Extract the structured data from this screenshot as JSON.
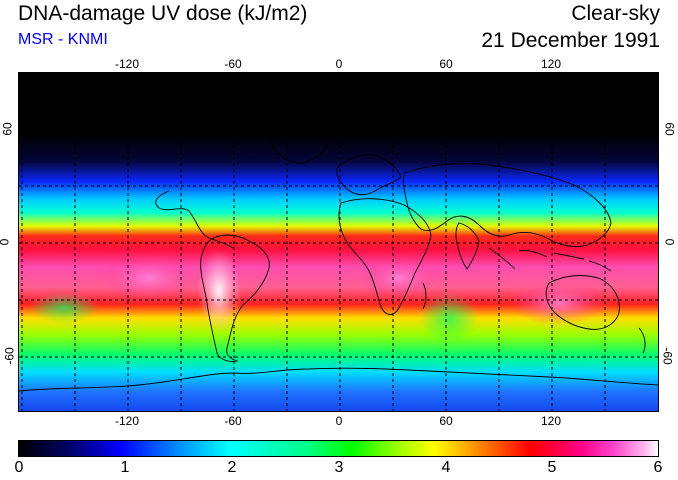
{
  "header": {
    "title": "DNA-damage UV dose (kJ/m2)",
    "subtitle": "MSR - KNMI",
    "condition": "Clear-sky",
    "date": "21 December 1991"
  },
  "map": {
    "lon_ticks": [
      "-120",
      "-60",
      "0",
      "60",
      "120"
    ],
    "lat_ticks": [
      "60",
      "0",
      "-60"
    ]
  },
  "colorbar": {
    "labels": [
      "0",
      "1",
      "2",
      "3",
      "4",
      "5",
      "6"
    ]
  },
  "colors": {
    "subtitle": "#0000ee",
    "coast": "#000000"
  }
}
